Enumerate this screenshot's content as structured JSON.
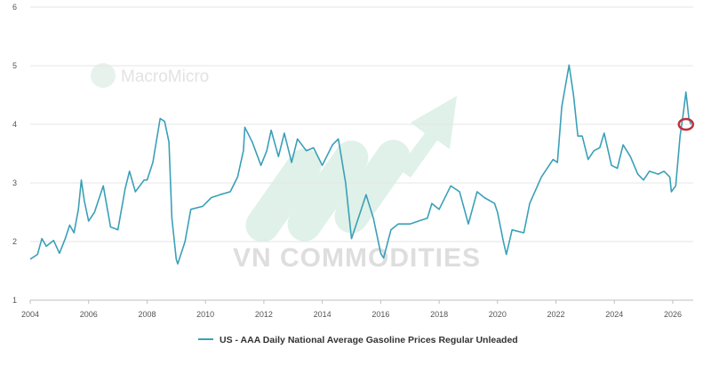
{
  "watermarks": {
    "macromicro": "MacroMicro",
    "vn_commodities": "VN COMMODITIES"
  },
  "colors": {
    "line": "#3aa0b8",
    "grid": "#e6e6e6",
    "axis": "#bfbfbf",
    "highlight_circle": "#c0303a",
    "watermark_arrow": "#dff1e8"
  },
  "chart_data": {
    "type": "line",
    "title": "",
    "xlabel": "",
    "ylabel": "",
    "x_range": [
      2004,
      2026.7
    ],
    "ylim": [
      1,
      6
    ],
    "y_ticks": [
      "1",
      "2",
      "3",
      "4",
      "5",
      "6"
    ],
    "x_ticks": [
      "2004",
      "2006",
      "2008",
      "2010",
      "2012",
      "2014",
      "2016",
      "2018",
      "2020",
      "2022",
      "2024",
      "2026"
    ],
    "grid": true,
    "legend_position": "bottom",
    "highlight": {
      "x": 2026.45,
      "y": 4.0,
      "shape": "circle"
    },
    "series": [
      {
        "name": "US - AAA Daily National Average Gasoline Prices Regular Unleaded",
        "points": [
          [
            2004.0,
            1.7
          ],
          [
            2004.25,
            1.78
          ],
          [
            2004.4,
            2.05
          ],
          [
            2004.55,
            1.92
          ],
          [
            2004.8,
            2.02
          ],
          [
            2005.0,
            1.8
          ],
          [
            2005.2,
            2.05
          ],
          [
            2005.35,
            2.28
          ],
          [
            2005.5,
            2.15
          ],
          [
            2005.65,
            2.55
          ],
          [
            2005.75,
            3.05
          ],
          [
            2005.85,
            2.7
          ],
          [
            2006.0,
            2.35
          ],
          [
            2006.2,
            2.5
          ],
          [
            2006.5,
            2.95
          ],
          [
            2006.75,
            2.25
          ],
          [
            2007.0,
            2.2
          ],
          [
            2007.25,
            2.9
          ],
          [
            2007.4,
            3.2
          ],
          [
            2007.6,
            2.85
          ],
          [
            2007.9,
            3.05
          ],
          [
            2008.0,
            3.05
          ],
          [
            2008.2,
            3.35
          ],
          [
            2008.45,
            4.1
          ],
          [
            2008.6,
            4.05
          ],
          [
            2008.75,
            3.7
          ],
          [
            2008.85,
            2.4
          ],
          [
            2009.0,
            1.7
          ],
          [
            2009.05,
            1.62
          ],
          [
            2009.3,
            2.0
          ],
          [
            2009.5,
            2.55
          ],
          [
            2009.9,
            2.6
          ],
          [
            2010.2,
            2.75
          ],
          [
            2010.5,
            2.8
          ],
          [
            2010.85,
            2.85
          ],
          [
            2011.1,
            3.1
          ],
          [
            2011.3,
            3.55
          ],
          [
            2011.35,
            3.95
          ],
          [
            2011.6,
            3.7
          ],
          [
            2011.9,
            3.3
          ],
          [
            2012.1,
            3.55
          ],
          [
            2012.25,
            3.9
          ],
          [
            2012.5,
            3.45
          ],
          [
            2012.7,
            3.85
          ],
          [
            2012.95,
            3.35
          ],
          [
            2013.15,
            3.75
          ],
          [
            2013.45,
            3.55
          ],
          [
            2013.7,
            3.6
          ],
          [
            2014.0,
            3.3
          ],
          [
            2014.35,
            3.65
          ],
          [
            2014.55,
            3.75
          ],
          [
            2014.8,
            3.0
          ],
          [
            2015.0,
            2.05
          ],
          [
            2015.3,
            2.5
          ],
          [
            2015.5,
            2.8
          ],
          [
            2015.75,
            2.4
          ],
          [
            2016.0,
            1.8
          ],
          [
            2016.1,
            1.72
          ],
          [
            2016.35,
            2.2
          ],
          [
            2016.6,
            2.3
          ],
          [
            2017.0,
            2.3
          ],
          [
            2017.3,
            2.35
          ],
          [
            2017.6,
            2.4
          ],
          [
            2017.75,
            2.65
          ],
          [
            2018.0,
            2.55
          ],
          [
            2018.4,
            2.95
          ],
          [
            2018.7,
            2.85
          ],
          [
            2019.0,
            2.3
          ],
          [
            2019.3,
            2.85
          ],
          [
            2019.55,
            2.75
          ],
          [
            2019.9,
            2.65
          ],
          [
            2020.0,
            2.5
          ],
          [
            2020.2,
            2.0
          ],
          [
            2020.3,
            1.78
          ],
          [
            2020.5,
            2.2
          ],
          [
            2020.9,
            2.15
          ],
          [
            2021.1,
            2.65
          ],
          [
            2021.5,
            3.1
          ],
          [
            2021.9,
            3.4
          ],
          [
            2022.05,
            3.35
          ],
          [
            2022.2,
            4.3
          ],
          [
            2022.45,
            5.01
          ],
          [
            2022.6,
            4.5
          ],
          [
            2022.75,
            3.8
          ],
          [
            2022.9,
            3.8
          ],
          [
            2023.1,
            3.4
          ],
          [
            2023.3,
            3.55
          ],
          [
            2023.5,
            3.6
          ],
          [
            2023.65,
            3.85
          ],
          [
            2023.9,
            3.3
          ],
          [
            2024.1,
            3.25
          ],
          [
            2024.3,
            3.65
          ],
          [
            2024.55,
            3.45
          ],
          [
            2024.8,
            3.15
          ],
          [
            2025.0,
            3.05
          ],
          [
            2025.2,
            3.2
          ],
          [
            2025.5,
            3.15
          ],
          [
            2025.7,
            3.2
          ],
          [
            2025.9,
            3.1
          ],
          [
            2025.95,
            2.85
          ],
          [
            2026.1,
            2.95
          ],
          [
            2026.25,
            3.8
          ],
          [
            2026.35,
            4.15
          ],
          [
            2026.45,
            4.55
          ],
          [
            2026.55,
            4.1
          ],
          [
            2026.62,
            4.0
          ]
        ]
      }
    ]
  }
}
